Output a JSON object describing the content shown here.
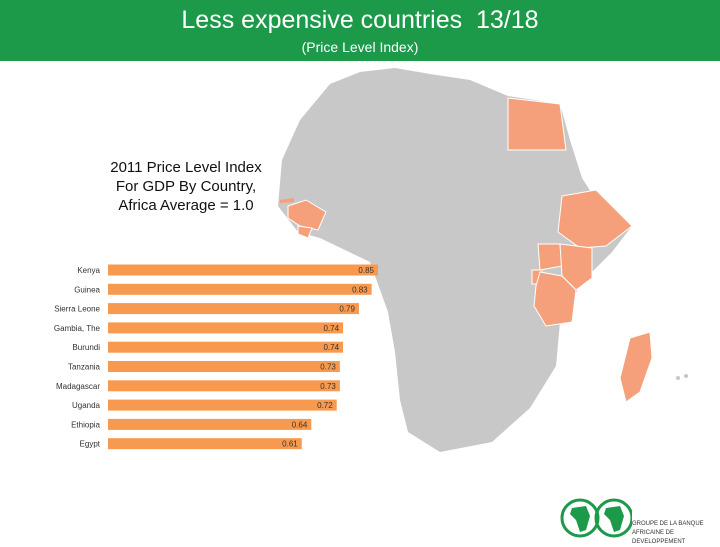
{
  "header": {
    "title": "Less expensive countries  13/18",
    "subtitle": "(Price Level Index)"
  },
  "chart_data": {
    "type": "bar",
    "orientation": "horizontal",
    "title": "2011 Price Level Index For GDP By Country, Africa Average = 1.0",
    "categories": [
      "Kenya",
      "Guinea",
      "Sierra Leone",
      "Gambia, The",
      "Burundi",
      "Tanzania",
      "Madagascar",
      "Uganda",
      "Ethiopia",
      "Egypt"
    ],
    "values": [
      0.85,
      0.83,
      0.79,
      0.74,
      0.74,
      0.73,
      0.73,
      0.72,
      0.64,
      0.61
    ],
    "value_labels": [
      "0.85",
      "0.83",
      "0.79",
      "0.74",
      "0.74",
      "0.73",
      "0.73",
      "0.72",
      "0.64",
      "0.61"
    ],
    "bar_color": "#f79a4f",
    "grid": false,
    "legend": "none"
  },
  "map": {
    "land_color": "#c8c8c8",
    "highlight_color": "#f5a07a"
  },
  "logo": {
    "line1": "GROUPE DE LA BANQUE",
    "line2": "AFRICAINE DE DEVELOPPEMENT",
    "accent": "#1c9a4a"
  }
}
